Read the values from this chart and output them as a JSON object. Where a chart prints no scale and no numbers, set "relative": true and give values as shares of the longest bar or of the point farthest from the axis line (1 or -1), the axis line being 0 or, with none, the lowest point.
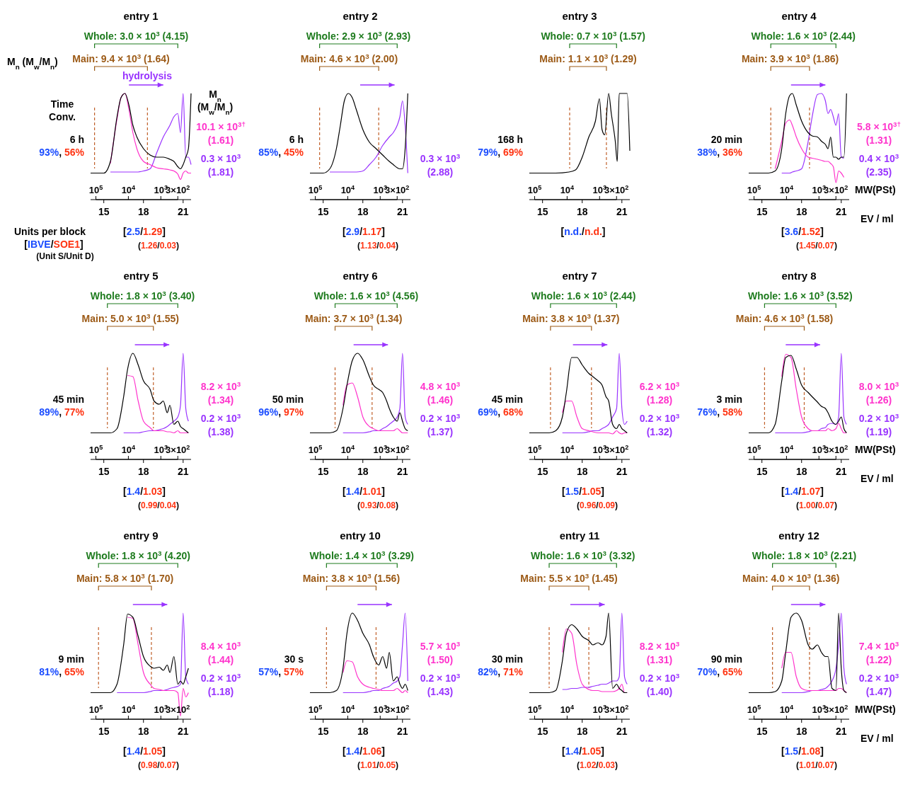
{
  "chart_data": [
    {
      "type": "other",
      "annotations": [
        "M$_{n}$ (M$_{w}$/M$_{n}$)",
        "Time",
        "Conv.",
        "M$_{n}$",
        "(M$_{w}$/M$_{n}$)",
        "hydrolysis",
        "Units per block",
        "[IBVE/SOE1]",
        "(Unit S/Unit D)"
      ]
    },
    {
      "type": "line",
      "title": "entry 1",
      "relative": true,
      "xlim": [
        14,
        21.6
      ],
      "xticks": [
        15,
        18,
        21
      ],
      "log": "x2",
      "x2lim": [
        100000,
        300
      ],
      "x2ticks": [
        {
          "value": 100000,
          "label": "10$^{5}$"
        },
        {
          "value": 10000,
          "label": "10$^{4}$"
        },
        {
          "value": 1000,
          "label": "10$^{3}$"
        },
        {
          "value": 300,
          "label": "3×10$^{2}$"
        }
      ],
      "x": [
        14,
        15,
        15.5,
        16,
        16.3,
        16.6,
        16.9,
        17.2,
        17.5,
        18,
        18.5,
        19,
        19.5,
        20,
        20.3,
        20.6,
        20.8,
        21,
        21.2,
        21.4,
        21.6
      ],
      "series": [
        {
          "color": "#000000",
          "values": [
            0.25,
            0.25,
            0.36,
            0.78,
            0.96,
            1,
            0.89,
            0.7,
            0.59,
            0.48,
            0.42,
            0.4,
            0.4,
            0.38,
            0.36,
            0.31,
            0.29,
            0.33,
            0.4,
            0.48,
            1
          ]
        },
        {
          "name": "10.1 × 10$^{3†}$ (1.61)",
          "color": "#ff33cc",
          "values": [
            null,
            null,
            0.34,
            0.76,
            0.96,
            1,
            0.85,
            0.63,
            0.48,
            0.36,
            0.33,
            0.3,
            0.29,
            0.28,
            0.27,
            0.24,
            0.19,
            0.25,
            0.27,
            0.25,
            0.25
          ]
        },
        {
          "name": "0.3 × 10$^{3}$ (1.81)",
          "color": "#9933ff",
          "values": [
            null,
            null,
            0.26,
            0.26,
            0.26,
            0.26,
            0.26,
            0.26,
            0.26,
            0.27,
            0.29,
            0.44,
            0.59,
            0.7,
            0.78,
            0.81,
            0.63,
            1,
            0.4,
            0.4,
            0.33
          ]
        }
      ],
      "ref_lines": [
        {
          "axis": "x",
          "value": 14.3,
          "color": "#c0602a",
          "line_style": "dashed"
        },
        {
          "axis": "x",
          "value": 18.3,
          "color": "#c0602a",
          "line_style": "dashed"
        }
      ],
      "annotations": [
        "Whole: 3.0 × 10$^{3}$ (4.15)",
        "Main: 9.4 × 10$^{3}$ (1.64)",
        "6 h",
        "93%, 56%",
        "[2.5/1.29]",
        "(1.26/0.03)"
      ]
    },
    {
      "type": "line",
      "title": "entry 2",
      "relative": true,
      "xlim": [
        14,
        21.6
      ],
      "xticks": [
        15,
        18,
        21
      ],
      "log": "x2",
      "x2lim": [
        100000,
        300
      ],
      "x2ticks": [
        {
          "value": 100000,
          "label": "10$^{5}$"
        },
        {
          "value": 10000,
          "label": "10$^{4}$"
        },
        {
          "value": 1000,
          "label": "10$^{3}$"
        },
        {
          "value": 300,
          "label": "3×10$^{2}$"
        }
      ],
      "x": [
        14,
        15,
        15.5,
        16,
        16.3,
        16.6,
        16.9,
        17.2,
        17.5,
        18,
        18.5,
        19,
        19.5,
        20,
        20.3,
        20.6,
        20.8,
        21,
        21.2,
        21.4
      ],
      "series": [
        {
          "color": "#000000",
          "values": [
            0.25,
            0.25,
            0.29,
            0.48,
            0.7,
            0.93,
            1,
            0.96,
            0.85,
            0.66,
            0.54,
            0.48,
            0.42,
            0.36,
            0.33,
            0.3,
            0.29,
            0.29,
            0.48,
            1
          ]
        },
        {
          "name": "0.3 × 10$^{3}$ (2.88)",
          "color": "#9933ff",
          "values": [
            null,
            null,
            0.26,
            0.26,
            0.26,
            0.26,
            0.26,
            0.26,
            0.26,
            0.27,
            0.33,
            0.4,
            0.51,
            0.59,
            0.63,
            0.7,
            0.78,
            0.93,
            0.7,
            0.25
          ]
        }
      ],
      "ref_lines": [
        {
          "axis": "x",
          "value": 14.73,
          "color": "#c0602a",
          "line_style": "dashed"
        },
        {
          "axis": "x",
          "value": 19.2,
          "color": "#c0602a",
          "line_style": "dashed"
        }
      ],
      "annotations": [
        "Whole: 2.9 × 10$^{3}$ (2.93)",
        "Main: 4.6 × 10$^{3}$ (2.00)",
        "6 h",
        "85%, 45%",
        "[2.9/1.17]",
        "(1.13/0.04)"
      ]
    },
    {
      "type": "line",
      "title": "entry 3",
      "relative": true,
      "xlim": [
        14,
        21.6
      ],
      "xticks": [
        15,
        18,
        21
      ],
      "log": "x2",
      "x2lim": [
        100000,
        300
      ],
      "x2ticks": [
        {
          "value": 100000,
          "label": "10$^{5}$"
        },
        {
          "value": 10000,
          "label": "10$^{4}$"
        },
        {
          "value": 1000,
          "label": "10$^{3}$"
        },
        {
          "value": 300,
          "label": "3×10$^{2}$"
        }
      ],
      "x": [
        14,
        16,
        17,
        17.5,
        18,
        18.5,
        19,
        19.3,
        19.5,
        19.7,
        20,
        20.2,
        20.5,
        20.65,
        20.8,
        21.2,
        21.4,
        21.6
      ],
      "series": [
        {
          "color": "#000000",
          "values": [
            0.25,
            0.25,
            0.26,
            0.28,
            0.4,
            0.59,
            0.74,
            0.95,
            0.66,
            0.61,
            1,
            0.81,
            0.55,
            0.36,
            1,
            1,
            1,
            0.46
          ]
        }
      ],
      "ref_lines": [
        {
          "axis": "x",
          "value": 17.05,
          "color": "#c0602a",
          "line_style": "dashed"
        },
        {
          "axis": "x",
          "value": 19.83,
          "color": "#c0602a",
          "line_style": "dashed"
        }
      ],
      "annotations": [
        "Whole: 0.7 × 10$^{3}$ (1.57)",
        "Main: 1.1 × 10$^{3}$ (1.29)",
        "168 h",
        "79%, 69%",
        "[n.d./n.d.]"
      ]
    },
    {
      "type": "line",
      "title": "entry 4",
      "xlabel": "EV / ml",
      "x2label": "MW(PSt)",
      "relative": true,
      "xlim": [
        14,
        21.6
      ],
      "xticks": [
        15,
        18,
        21
      ],
      "log": "x2",
      "x2lim": [
        100000,
        300
      ],
      "x2ticks": [
        {
          "value": 100000,
          "label": "10$^{5}$"
        },
        {
          "value": 10000,
          "label": "10$^{4}$"
        },
        {
          "value": 1000,
          "label": "10$^{3}$"
        },
        {
          "value": 300,
          "label": "3×10$^{2}$"
        }
      ],
      "x": [
        14,
        15.5,
        16,
        16.5,
        16.8,
        17.1,
        17.3,
        17.6,
        18,
        18.5,
        18.8,
        19.2,
        19.5,
        19.8,
        20,
        20.2,
        20.4,
        20.6,
        20.8,
        21,
        21.2,
        21.4
      ],
      "series": [
        {
          "color": "#000000",
          "values": [
            0.25,
            0.25,
            0.27,
            0.48,
            0.81,
            0.98,
            1,
            0.89,
            0.74,
            0.63,
            0.6,
            0.59,
            0.55,
            0.52,
            0.48,
            0.59,
            0.4,
            0.4,
            0.38,
            0.4,
            0.4,
            1
          ]
        },
        {
          "name": "5.8 × 10$^{3†}$ (1.31)",
          "color": "#ff33cc",
          "values": [
            null,
            null,
            0.29,
            0.55,
            0.72,
            0.75,
            0.7,
            0.59,
            0.48,
            0.4,
            0.39,
            0.38,
            0.37,
            0.36,
            0.36,
            0.34,
            0.31,
            0.16,
            0.27,
            0.25,
            0.21,
            null
          ]
        },
        {
          "name": "0.4 × 10$^{3}$ (2.35)",
          "color": "#9933ff",
          "values": [
            null,
            null,
            null,
            0.25,
            0.25,
            0.25,
            0.26,
            0.27,
            0.29,
            0.55,
            0.78,
            0.99,
            1,
            0.93,
            0.81,
            0.85,
            0.78,
            0.7,
            0.81,
            0.4,
            0.39,
            null
          ]
        }
      ],
      "ref_lines": [
        {
          "axis": "x",
          "value": 15.67,
          "color": "#c0602a",
          "line_style": "dashed"
        },
        {
          "axis": "x",
          "value": 18.6,
          "color": "#c0602a",
          "line_style": "dashed"
        }
      ],
      "annotations": [
        "Whole: 1.6 × 10$^{3}$ (2.44)",
        "Main: 3.9 × 10$^{3}$ (1.86)",
        "20 min",
        "38%, 36%",
        "[3.6/1.52]",
        "(1.45/0.07)"
      ]
    },
    {
      "type": "line",
      "title": "entry 5",
      "relative": true,
      "xlim": [
        14,
        21.6
      ],
      "xticks": [
        15,
        18,
        21
      ],
      "log": "x2",
      "x2lim": [
        100000,
        300
      ],
      "x2ticks": [
        {
          "value": 100000,
          "label": "10$^{5}$"
        },
        {
          "value": 10000,
          "label": "10$^{4}$"
        },
        {
          "value": 1000,
          "label": "10$^{3}$"
        },
        {
          "value": 300,
          "label": "3×10$^{2}$"
        }
      ],
      "x": [
        14,
        15.5,
        16,
        16.5,
        16.8,
        17.2,
        17.6,
        18,
        18.5,
        18.8,
        19.2,
        19.5,
        19.8,
        20,
        20.3,
        20.6,
        20.8,
        21,
        21.2,
        21.4
      ],
      "series": [
        {
          "color": "#000000",
          "values": [
            0.25,
            0.25,
            0.29,
            0.59,
            0.85,
            1,
            0.89,
            0.74,
            0.66,
            0.55,
            0.52,
            0.55,
            0.44,
            0.51,
            0.33,
            0.36,
            0.31,
            0.29,
            0.27,
            0.25
          ]
        },
        {
          "name": "8.2 × 10$^{3}$ (1.34)",
          "color": "#ff33cc",
          "values": [
            null,
            null,
            null,
            null,
            0.79,
            0.78,
            0.55,
            0.36,
            0.3,
            0.27,
            0.27,
            0.27,
            0.26,
            0.26,
            0.25,
            0.27,
            0.25,
            0.25,
            0.25,
            0.25
          ]
        },
        {
          "name": "0.2 × 10$^{3}$ (1.38)",
          "color": "#9933ff",
          "values": [
            null,
            null,
            null,
            0.25,
            0.25,
            0.25,
            0.25,
            0.26,
            0.27,
            0.27,
            0.28,
            0.29,
            0.31,
            0.33,
            0.36,
            0.4,
            0.51,
            1,
            0.48,
            0.36
          ]
        }
      ],
      "ref_lines": [
        {
          "axis": "x",
          "value": 15.27,
          "color": "#c0602a",
          "line_style": "dashed"
        },
        {
          "axis": "x",
          "value": 18.75,
          "color": "#c0602a",
          "line_style": "dashed"
        }
      ],
      "annotations": [
        "Whole: 1.8 × 10$^{3}$ (3.40)",
        "Main: 5.0 × 10$^{3}$ (1.55)",
        "45 min",
        "89%, 77%",
        "[1.4/1.03]",
        "(0.99/0.04)"
      ]
    },
    {
      "type": "line",
      "title": "entry 6",
      "relative": true,
      "xlim": [
        14,
        21.6
      ],
      "xticks": [
        15,
        18,
        21
      ],
      "log": "x2",
      "x2lim": [
        100000,
        300
      ],
      "x2ticks": [
        {
          "value": 100000,
          "label": "10$^{5}$"
        },
        {
          "value": 10000,
          "label": "10$^{4}$"
        },
        {
          "value": 1000,
          "label": "10$^{3}$"
        },
        {
          "value": 300,
          "label": "3×10$^{2}$"
        }
      ],
      "x": [
        14,
        15.5,
        16,
        16.5,
        16.8,
        17.2,
        17.6,
        18,
        18.5,
        18.8,
        19.2,
        19.5,
        19.8,
        20,
        20.3,
        20.6,
        20.8,
        21,
        21.2,
        21.4
      ],
      "series": [
        {
          "color": "#000000",
          "values": [
            0.25,
            0.25,
            0.27,
            0.48,
            0.7,
            0.93,
            1,
            0.94,
            0.78,
            0.7,
            0.66,
            0.63,
            0.55,
            0.48,
            0.4,
            0.36,
            0.44,
            0.36,
            0.29,
            0.27
          ]
        },
        {
          "name": "4.8 × 10$^{3}$ (1.46)",
          "color": "#ff33cc",
          "values": [
            null,
            null,
            null,
            0.51,
            0.7,
            0.72,
            0.59,
            0.4,
            0.31,
            0.29,
            0.27,
            0.27,
            0.27,
            0.27,
            0.27,
            0.29,
            0.27,
            0.25,
            0.25,
            0.25
          ]
        },
        {
          "name": "0.2 × 10$^{3}$ (1.37)",
          "color": "#9933ff",
          "values": [
            null,
            null,
            null,
            0.25,
            0.25,
            0.25,
            0.25,
            0.25,
            0.26,
            0.27,
            0.27,
            0.29,
            0.31,
            0.33,
            0.36,
            0.4,
            0.48,
            1,
            0.4,
            0.33
          ]
        }
      ],
      "ref_lines": [
        {
          "axis": "x",
          "value": 15.9,
          "color": "#c0602a",
          "line_style": "dashed"
        },
        {
          "axis": "x",
          "value": 18.7,
          "color": "#c0602a",
          "line_style": "dashed"
        }
      ],
      "annotations": [
        "Whole: 1.6 × 10$^{3}$ (4.56)",
        "Main: 3.7 × 10$^{3}$ (1.34)",
        "50 min",
        "96%, 97%",
        "[1.4/1.01]",
        "(0.93/0.08)"
      ]
    },
    {
      "type": "line",
      "title": "entry 7",
      "relative": true,
      "xlim": [
        14,
        21.6
      ],
      "xticks": [
        15,
        18,
        21
      ],
      "log": "x2",
      "x2lim": [
        100000,
        300
      ],
      "x2ticks": [
        {
          "value": 100000,
          "label": "10$^{5}$"
        },
        {
          "value": 10000,
          "label": "10$^{4}$"
        },
        {
          "value": 1000,
          "label": "10$^{3}$"
        },
        {
          "value": 300,
          "label": "3×10$^{2}$"
        }
      ],
      "x": [
        14,
        15.5,
        16,
        16.5,
        16.8,
        17.2,
        17.6,
        18,
        18.5,
        18.8,
        19.2,
        19.5,
        19.8,
        20,
        20.3,
        20.6,
        20.8,
        21,
        21.2,
        21.4
      ],
      "series": [
        {
          "color": "#000000",
          "values": [
            0.25,
            0.25,
            0.27,
            0.4,
            0.63,
            0.96,
            0.96,
            0.89,
            0.81,
            0.78,
            0.74,
            0.7,
            0.59,
            0.55,
            0.33,
            0.29,
            0.33,
            0.29,
            0.27,
            0.25
          ]
        },
        {
          "name": "6.2 × 10$^{3}$ (1.28)",
          "color": "#ff33cc",
          "values": [
            null,
            null,
            null,
            0.44,
            0.55,
            0.55,
            0.4,
            0.29,
            0.27,
            0.26,
            0.25,
            0.25,
            0.25,
            0.25,
            0.24,
            0.27,
            0.25,
            0.24,
            0.25,
            0.25
          ]
        },
        {
          "name": "0.2 × 10$^{3}$ (1.32)",
          "color": "#9933ff",
          "values": [
            null,
            null,
            null,
            0.25,
            0.25,
            0.25,
            0.25,
            0.25,
            0.26,
            0.27,
            0.27,
            0.29,
            0.31,
            0.33,
            0.4,
            0.48,
            1,
            0.48,
            0.33,
            0.36
          ]
        }
      ],
      "ref_lines": [
        {
          "axis": "x",
          "value": 15.6,
          "color": "#c0602a",
          "line_style": "dashed"
        },
        {
          "axis": "x",
          "value": 18.7,
          "color": "#c0602a",
          "line_style": "dashed"
        }
      ],
      "annotations": [
        "Whole: 1.6 × 10$^{3}$ (2.44)",
        "Main: 3.8 × 10$^{3}$ (1.37)",
        "45 min",
        "69%, 68%",
        "[1.5/1.05]",
        "(0.96/0.09)"
      ]
    },
    {
      "type": "line",
      "title": "entry 8",
      "xlabel": "EV / ml",
      "x2label": "MW(PSt)",
      "relative": true,
      "xlim": [
        14,
        21.6
      ],
      "xticks": [
        15,
        18,
        21
      ],
      "log": "x2",
      "x2lim": [
        100000,
        300
      ],
      "x2ticks": [
        {
          "value": 100000,
          "label": "10$^{5}$"
        },
        {
          "value": 10000,
          "label": "10$^{4}$"
        },
        {
          "value": 1000,
          "label": "10$^{3}$"
        },
        {
          "value": 300,
          "label": "3×10$^{2}$"
        }
      ],
      "x": [
        14,
        15.5,
        16,
        16.5,
        16.8,
        17.2,
        17.6,
        18,
        18.5,
        18.8,
        19.2,
        19.5,
        19.8,
        20,
        20.3,
        20.6,
        20.8,
        21,
        21.2,
        21.4
      ],
      "series": [
        {
          "color": "#000000",
          "values": [
            0.25,
            0.25,
            0.33,
            0.74,
            0.96,
            0.98,
            0.85,
            0.7,
            0.63,
            0.59,
            0.54,
            0.5,
            0.48,
            0.44,
            0.36,
            0.33,
            0.36,
            0.4,
            0.29,
            0.25
          ]
        },
        {
          "name": "8.0 × 10$^{3}$ (1.26)",
          "color": "#ff33cc",
          "values": [
            null,
            null,
            null,
            0.78,
            0.99,
            0.96,
            0.66,
            0.4,
            0.29,
            0.27,
            0.27,
            0.27,
            0.27,
            0.29,
            0.27,
            0.29,
            0.34,
            0.29,
            0.25,
            0.25
          ]
        },
        {
          "name": "0.2 × 10$^{3}$ (1.19)",
          "color": "#9933ff",
          "values": [
            null,
            null,
            0.25,
            0.25,
            0.25,
            0.25,
            0.25,
            0.25,
            0.26,
            0.27,
            0.27,
            0.29,
            0.3,
            0.33,
            0.34,
            0.33,
            0.4,
            1,
            0.4,
            0.33
          ]
        }
      ],
      "ref_lines": [
        {
          "axis": "x",
          "value": 15.2,
          "color": "#c0602a",
          "line_style": "dashed"
        },
        {
          "axis": "x",
          "value": 18.2,
          "color": "#c0602a",
          "line_style": "dashed"
        }
      ],
      "annotations": [
        "Whole: 1.6 × 10$^{3}$ (3.52)",
        "Main: 4.6 × 10$^{3}$ (1.58)",
        "3 min",
        "76%, 58%",
        "[1.4/1.07]",
        "(1.00/0.07)"
      ]
    },
    {
      "type": "line",
      "title": "entry 9",
      "relative": true,
      "xlim": [
        14,
        21.6
      ],
      "xticks": [
        15,
        18,
        21
      ],
      "log": "x2",
      "x2lim": [
        100000,
        300
      ],
      "x2ticks": [
        {
          "value": 100000,
          "label": "10$^{5}$"
        },
        {
          "value": 10000,
          "label": "10$^{4}$"
        },
        {
          "value": 1000,
          "label": "10$^{3}$"
        },
        {
          "value": 300,
          "label": "3×10$^{2}$"
        }
      ],
      "x": [
        14,
        15.5,
        16,
        16.5,
        16.8,
        17.2,
        17.6,
        18,
        18.5,
        18.8,
        19.2,
        19.5,
        19.8,
        20,
        20.3,
        20.6,
        20.8,
        21,
        21.2,
        21.4
      ],
      "series": [
        {
          "color": "#000000",
          "values": [
            0.25,
            0.25,
            0.33,
            0.7,
            0.99,
            0.96,
            0.78,
            0.59,
            0.5,
            0.48,
            0.49,
            0.46,
            0.51,
            0.44,
            0.59,
            0.33,
            0.36,
            0.33,
            0.4,
            0.48
          ]
        },
        {
          "name": "8.4 × 10$^{3}$ (1.44)",
          "color": "#ff33cc",
          "values": [
            null,
            null,
            null,
            null,
            0.96,
            0.95,
            0.7,
            0.44,
            0.33,
            0.29,
            0.28,
            0.27,
            0.27,
            0.27,
            0.27,
            0.25,
            0.03,
            0.29,
            0.21,
            0.25
          ]
        },
        {
          "name": "0.2 × 10$^{3}$ (1.18)",
          "color": "#9933ff",
          "values": [
            null,
            null,
            0.25,
            0.25,
            0.25,
            0.25,
            0.25,
            0.25,
            0.26,
            0.27,
            0.27,
            0.27,
            0.28,
            0.29,
            0.3,
            0.31,
            0.33,
            1,
            0.4,
            0.33
          ]
        }
      ],
      "ref_lines": [
        {
          "axis": "x",
          "value": 14.6,
          "color": "#c0602a",
          "line_style": "dashed"
        },
        {
          "axis": "x",
          "value": 18.6,
          "color": "#c0602a",
          "line_style": "dashed"
        }
      ],
      "annotations": [
        "Whole: 1.8 × 10$^{3}$ (4.20)",
        "Main: 5.8 × 10$^{3}$ (1.70)",
        "9 min",
        "81%, 65%",
        "[1.4/1.05]",
        "(0.98/0.07)"
      ]
    },
    {
      "type": "line",
      "title": "entry 10",
      "relative": true,
      "xlim": [
        14,
        21.6
      ],
      "xticks": [
        15,
        18,
        21
      ],
      "log": "x2",
      "x2lim": [
        100000,
        300
      ],
      "x2ticks": [
        {
          "value": 100000,
          "label": "10$^{5}$"
        },
        {
          "value": 10000,
          "label": "10$^{4}$"
        },
        {
          "value": 1000,
          "label": "10$^{3}$"
        },
        {
          "value": 300,
          "label": "3×10$^{2}$"
        }
      ],
      "x": [
        14,
        15.5,
        16,
        16.5,
        16.8,
        17.2,
        17.6,
        18,
        18.5,
        18.8,
        19.2,
        19.5,
        19.8,
        20,
        20.3,
        20.6,
        20.8,
        21,
        21.2,
        21.4
      ],
      "series": [
        {
          "color": "#000000",
          "values": [
            0.25,
            0.25,
            0.27,
            0.48,
            0.81,
            1,
            0.93,
            0.81,
            0.7,
            0.59,
            0.51,
            0.59,
            0.48,
            0.63,
            0.36,
            0.4,
            0.33,
            0.29,
            0.33,
            0.27
          ]
        },
        {
          "name": "5.7 × 10$^{3}$ (1.50)",
          "color": "#ff33cc",
          "values": [
            null,
            null,
            null,
            0.44,
            0.55,
            0.54,
            0.4,
            0.33,
            0.3,
            0.29,
            0.28,
            0.27,
            0.27,
            0.27,
            0.27,
            0.29,
            0.27,
            0.25,
            0.27,
            0.25
          ]
        },
        {
          "name": "0.2 × 10$^{3}$ (1.43)",
          "color": "#9933ff",
          "values": [
            null,
            null,
            null,
            0.25,
            0.25,
            0.25,
            0.25,
            0.25,
            0.26,
            0.27,
            0.27,
            0.29,
            0.3,
            0.31,
            0.34,
            0.36,
            0.4,
            0.7,
            1,
            0.36
          ]
        }
      ],
      "ref_lines": [
        {
          "axis": "x",
          "value": 15.25,
          "color": "#c0602a",
          "line_style": "dashed"
        },
        {
          "axis": "x",
          "value": 19.0,
          "color": "#c0602a",
          "line_style": "dashed"
        }
      ],
      "annotations": [
        "Whole: 1.4 × 10$^{3}$ (3.29)",
        "Main: 3.8 × 10$^{3}$ (1.56)",
        "30 s",
        "57%, 57%",
        "[1.4/1.06]",
        "(1.01/0.05)"
      ]
    },
    {
      "type": "line",
      "title": "entry 11",
      "relative": true,
      "xlim": [
        14,
        21.6
      ],
      "xticks": [
        15,
        18,
        21
      ],
      "log": "x2",
      "x2lim": [
        100000,
        300
      ],
      "x2ticks": [
        {
          "value": 100000,
          "label": "10$^{5}$"
        },
        {
          "value": 10000,
          "label": "10$^{4}$"
        },
        {
          "value": 1000,
          "label": "10$^{3}$"
        },
        {
          "value": 300,
          "label": "3×10$^{2}$"
        }
      ],
      "x": [
        14,
        15.5,
        16,
        16.5,
        16.8,
        17.2,
        17.6,
        18,
        18.5,
        18.8,
        19.2,
        19.5,
        19.8,
        20,
        20.3,
        20.6,
        20.8,
        21,
        21.2,
        21.4
      ],
      "series": [
        {
          "color": "#000000",
          "values": [
            0.25,
            0.25,
            0.27,
            0.55,
            0.81,
            0.89,
            0.85,
            0.78,
            0.74,
            0.7,
            0.72,
            0.7,
            0.78,
            1,
            0.29,
            0.33,
            0.29,
            0.27,
            0.25,
            0.25
          ]
        },
        {
          "name": "8.2 × 10$^{3}$ (1.31)",
          "color": "#ff33cc",
          "values": [
            null,
            null,
            null,
            0.63,
            0.85,
            0.81,
            0.51,
            0.33,
            0.28,
            0.27,
            0.27,
            0.26,
            0.26,
            0.26,
            0.26,
            0.27,
            0.29,
            0.33,
            0.25,
            0.25
          ]
        },
        {
          "name": "0.2 × 10$^{3}$ (1.40)",
          "color": "#9933ff",
          "values": [
            null,
            null,
            null,
            0.28,
            0.28,
            0.29,
            0.29,
            0.3,
            0.3,
            0.31,
            0.32,
            0.33,
            0.33,
            0.34,
            0.36,
            0.36,
            0.4,
            1,
            0.4,
            0.33
          ]
        }
      ],
      "ref_lines": [
        {
          "axis": "x",
          "value": 15.5,
          "color": "#c0602a",
          "line_style": "dashed"
        },
        {
          "axis": "x",
          "value": 18.5,
          "color": "#c0602a",
          "line_style": "dashed"
        }
      ],
      "annotations": [
        "Whole: 1.6 × 10$^{3}$ (3.32)",
        "Main: 5.5 × 10$^{3}$ (1.45)",
        "30 min",
        "82%, 71%",
        "[1.4/1.05]",
        "(1.02/0.03)"
      ]
    },
    {
      "type": "line",
      "title": "entry 12",
      "xlabel": "EV / ml",
      "x2label": "MW(PSt)",
      "relative": true,
      "xlim": [
        14,
        21.6
      ],
      "xticks": [
        15,
        18,
        21
      ],
      "log": "x2",
      "x2lim": [
        100000,
        300
      ],
      "x2ticks": [
        {
          "value": 100000,
          "label": "10$^{5}$"
        },
        {
          "value": 10000,
          "label": "10$^{4}$"
        },
        {
          "value": 1000,
          "label": "10$^{3}$"
        },
        {
          "value": 300,
          "label": "3×10$^{2}$"
        }
      ],
      "x": [
        14,
        15.5,
        16,
        16.5,
        16.8,
        17.2,
        17.6,
        18,
        18.5,
        18.8,
        19.2,
        19.5,
        19.8,
        20,
        20.3,
        20.6,
        20.8,
        21,
        21.2,
        21.4
      ],
      "series": [
        {
          "color": "#000000",
          "values": [
            0.25,
            0.25,
            0.26,
            0.36,
            0.63,
            0.96,
            1,
            0.93,
            0.7,
            0.66,
            0.7,
            0.63,
            0.59,
            0.59,
            0.29,
            0.27,
            1,
            0.48,
            0.27,
            0.25
          ]
        },
        {
          "name": "7.4 × 10$^{3}$ (1.22)",
          "color": "#ff33cc",
          "values": [
            null,
            null,
            null,
            0.48,
            0.63,
            0.63,
            0.4,
            0.29,
            0.27,
            0.27,
            0.27,
            0.27,
            0.27,
            0.27,
            0.27,
            0.27,
            0.29,
            0.29,
            0.27,
            0.25
          ]
        },
        {
          "name": "0.2 × 10$^{3}$ (1.47)",
          "color": "#9933ff",
          "values": [
            null,
            null,
            null,
            0.25,
            0.25,
            0.25,
            0.25,
            0.25,
            0.26,
            0.27,
            0.27,
            0.28,
            0.29,
            0.31,
            0.36,
            0.48,
            0.7,
            1,
            0.48,
            0.33
          ]
        }
      ],
      "ref_lines": [
        {
          "axis": "x",
          "value": 15.8,
          "color": "#c0602a",
          "line_style": "dashed"
        },
        {
          "axis": "x",
          "value": 18.6,
          "color": "#c0602a",
          "line_style": "dashed"
        }
      ],
      "annotations": [
        "Whole: 1.8 × 10$^{3}$ (2.21)",
        "Main: 4.0 × 10$^{3}$ (1.36)",
        "90 min",
        "70%, 65%",
        "[1.5/1.08]",
        "(1.01/0.07)"
      ]
    }
  ]
}
